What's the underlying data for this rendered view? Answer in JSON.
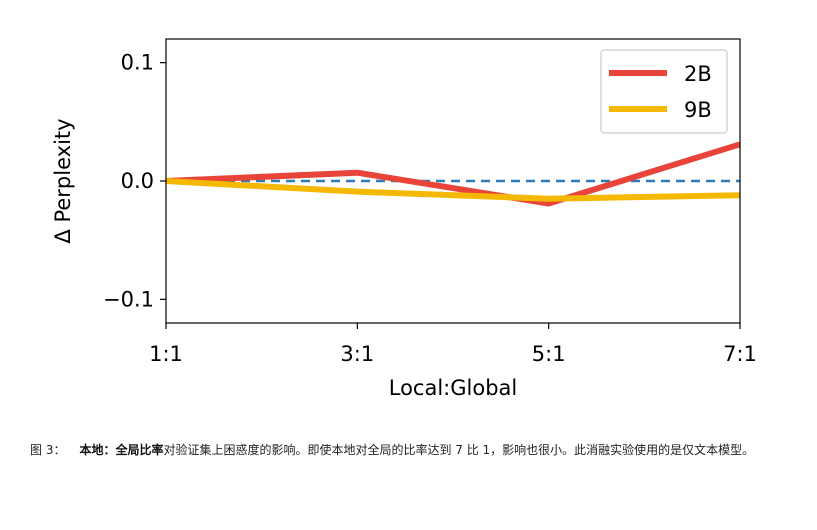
{
  "chart_data": {
    "type": "line",
    "x": [
      "1:1",
      "3:1",
      "5:1",
      "7:1"
    ],
    "xlabel": "Local:Global",
    "ylabel": "Δ Perplexity",
    "ylim": [
      -0.12,
      0.12
    ],
    "yticks": [
      {
        "value": 0.1,
        "label": "0.1"
      },
      {
        "value": 0.0,
        "label": "0.0"
      },
      {
        "value": -0.1,
        "label": "−0.1"
      }
    ],
    "series": [
      {
        "name": "2B",
        "color": "#e8443a",
        "values": [
          0.0,
          0.007,
          -0.019,
          0.031
        ]
      },
      {
        "name": "9B",
        "color": "#f5b800",
        "values": [
          0.0,
          -0.009,
          -0.015,
          -0.012
        ]
      }
    ],
    "reference_line": {
      "value": 0.0,
      "color": "#2f7bb6",
      "style": "dashed"
    },
    "legend_position": "top-right",
    "grid": false
  },
  "caption": {
    "figure_number": "图 3：",
    "title_bold": "本地：全局比率",
    "text": "对验证集上困惑度的影响。即使本地对全局的比率达到 7 比 1，影响也很小。此消融实验使用的是仅文本模型。"
  }
}
